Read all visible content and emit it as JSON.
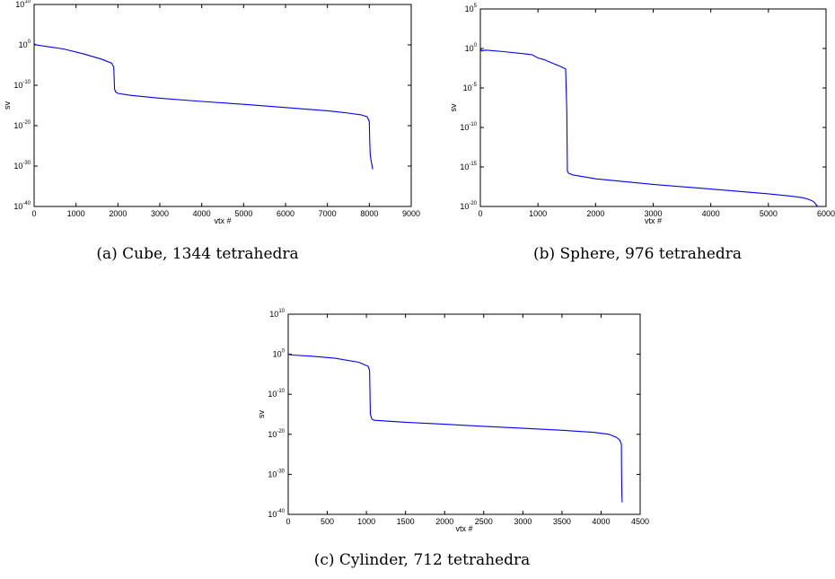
{
  "captions": {
    "a": "(a) Cube, 1344 tetrahedra",
    "b": "(b) Sphere, 976 tetrahedra",
    "c": "(c) Cylinder, 712 tetrahedra"
  },
  "chart_data": [
    {
      "type": "line",
      "xlabel": "vtx #",
      "ylabel": "sv",
      "xlim": [
        0,
        9000
      ],
      "ylim_log10": [
        -40,
        10
      ],
      "y_scale": "log",
      "xticks": [
        0,
        1000,
        2000,
        3000,
        4000,
        5000,
        6000,
        7000,
        8000,
        9000
      ],
      "yticks_exp": [
        -40,
        -30,
        -20,
        -10,
        0,
        10
      ],
      "line_color": "#0000ff",
      "series": [
        {
          "x": [
            0,
            10,
            50,
            300,
            700,
            1200,
            1600,
            1850,
            1900,
            1920,
            1950,
            2000,
            2300,
            3000,
            4000,
            5000,
            6000,
            7000,
            7500,
            7800,
            7950,
            8000,
            8010,
            8020,
            8040,
            8060,
            8080
          ],
          "log10_y": [
            0.5,
            0.2,
            0.0,
            -0.4,
            -1.0,
            -2.3,
            -3.5,
            -4.5,
            -5.5,
            -11.0,
            -11.7,
            -12.0,
            -12.5,
            -13.2,
            -14.0,
            -14.7,
            -15.5,
            -16.3,
            -16.9,
            -17.3,
            -17.8,
            -19.0,
            -24.0,
            -27.0,
            -28.5,
            -29.6,
            -30.8
          ]
        }
      ]
    },
    {
      "type": "line",
      "xlabel": "vtx #",
      "ylabel": "sv",
      "xlim": [
        0,
        6000
      ],
      "ylim_log10": [
        -20,
        5
      ],
      "y_scale": "log",
      "xticks": [
        0,
        1000,
        2000,
        3000,
        4000,
        5000,
        6000
      ],
      "yticks_exp": [
        -20,
        -15,
        -10,
        -5,
        0,
        5
      ],
      "line_color": "#0000ff",
      "series": [
        {
          "x": [
            0,
            20,
            100,
            400,
            800,
            900,
            950,
            1000,
            1100,
            1200,
            1300,
            1400,
            1480,
            1500,
            1510,
            1530,
            1600,
            2000,
            3000,
            4000,
            5000,
            5400,
            5600,
            5700,
            5760,
            5800,
            5830,
            5860
          ],
          "log10_y": [
            0.1,
            -0.3,
            -0.2,
            -0.4,
            -0.7,
            -0.8,
            -1.0,
            -1.2,
            -1.4,
            -1.7,
            -2.0,
            -2.3,
            -2.6,
            -8.0,
            -15.5,
            -15.8,
            -16.0,
            -16.5,
            -17.2,
            -17.8,
            -18.4,
            -18.7,
            -18.9,
            -19.1,
            -19.3,
            -19.5,
            -19.8,
            -20.0
          ]
        }
      ]
    },
    {
      "type": "line",
      "xlabel": "vtx #",
      "ylabel": "sv",
      "xlim": [
        0,
        4500
      ],
      "ylim_log10": [
        -40,
        10
      ],
      "y_scale": "log",
      "xticks": [
        0,
        500,
        1000,
        1500,
        2000,
        2500,
        3000,
        3500,
        4000,
        4500
      ],
      "yticks_exp": [
        -40,
        -30,
        -20,
        -10,
        0,
        10
      ],
      "line_color": "#0000ff",
      "series": [
        {
          "x": [
            0,
            10,
            50,
            300,
            600,
            900,
            1020,
            1040,
            1050,
            1070,
            1100,
            1500,
            2000,
            2500,
            3000,
            3500,
            3900,
            4100,
            4200,
            4240,
            4260,
            4262,
            4266,
            4270
          ],
          "log10_y": [
            0.0,
            -0.1,
            -0.2,
            -0.5,
            -1.0,
            -2.0,
            -3.0,
            -4.0,
            -15.0,
            -16.2,
            -16.5,
            -17.0,
            -17.5,
            -18.0,
            -18.5,
            -19.0,
            -19.5,
            -20.0,
            -20.8,
            -21.5,
            -22.5,
            -30.0,
            -35.0,
            -37.0
          ]
        }
      ]
    }
  ]
}
